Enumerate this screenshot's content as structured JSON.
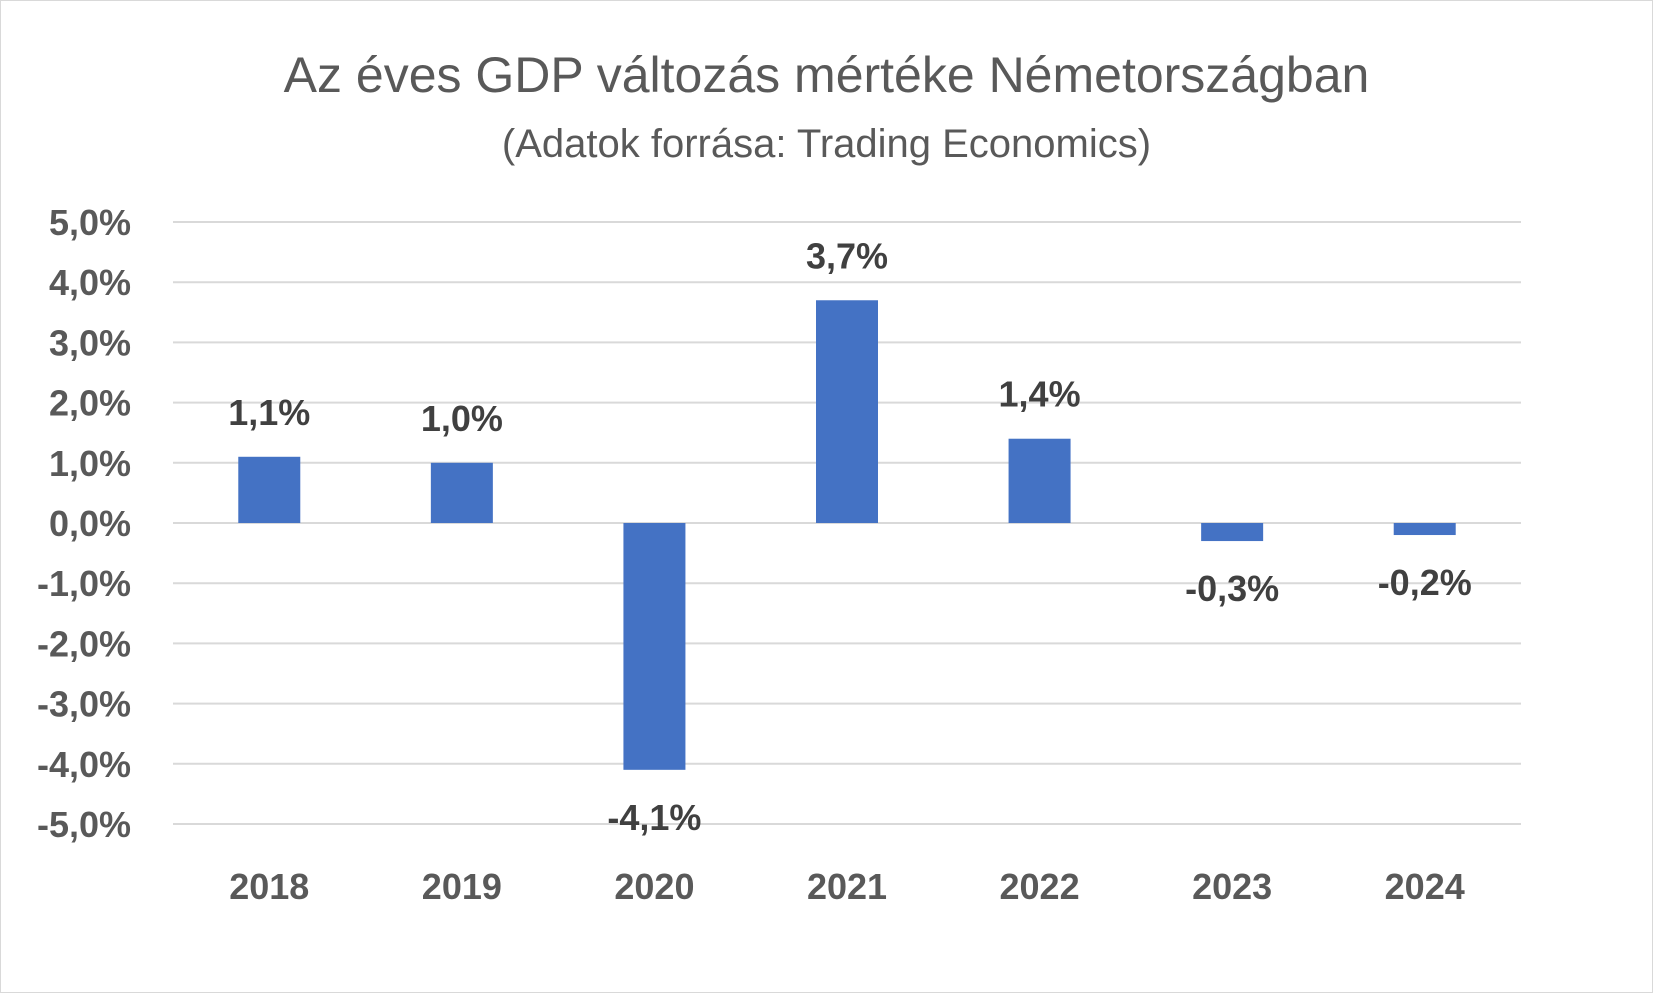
{
  "chart_data": {
    "type": "bar",
    "title": "Az éves GDP változás mértéke Németországban",
    "subtitle": "(Adatok forrása: Trading Economics)",
    "categories": [
      "2018",
      "2019",
      "2020",
      "2021",
      "2022",
      "2023",
      "2024"
    ],
    "values": [
      1.1,
      1.0,
      -4.1,
      3.7,
      1.4,
      -0.3,
      -0.2
    ],
    "data_labels": [
      "1,1%",
      "1,0%",
      "-4,1%",
      "3,7%",
      "1,4%",
      "-0,3%",
      "-0,2%"
    ],
    "y_ticks": [
      5,
      4,
      3,
      2,
      1,
      0,
      -1,
      -2,
      -3,
      -4,
      -5
    ],
    "y_tick_labels": [
      "5,0%",
      "4,0%",
      "3,0%",
      "2,0%",
      "1,0%",
      "0,0%",
      "-1,0%",
      "-2,0%",
      "-3,0%",
      "-4,0%",
      "-5,0%"
    ],
    "ylim": [
      -5,
      5
    ],
    "grid": true,
    "legend": "none",
    "bar_color": "#4472c4",
    "xlabel": "",
    "ylabel": ""
  }
}
